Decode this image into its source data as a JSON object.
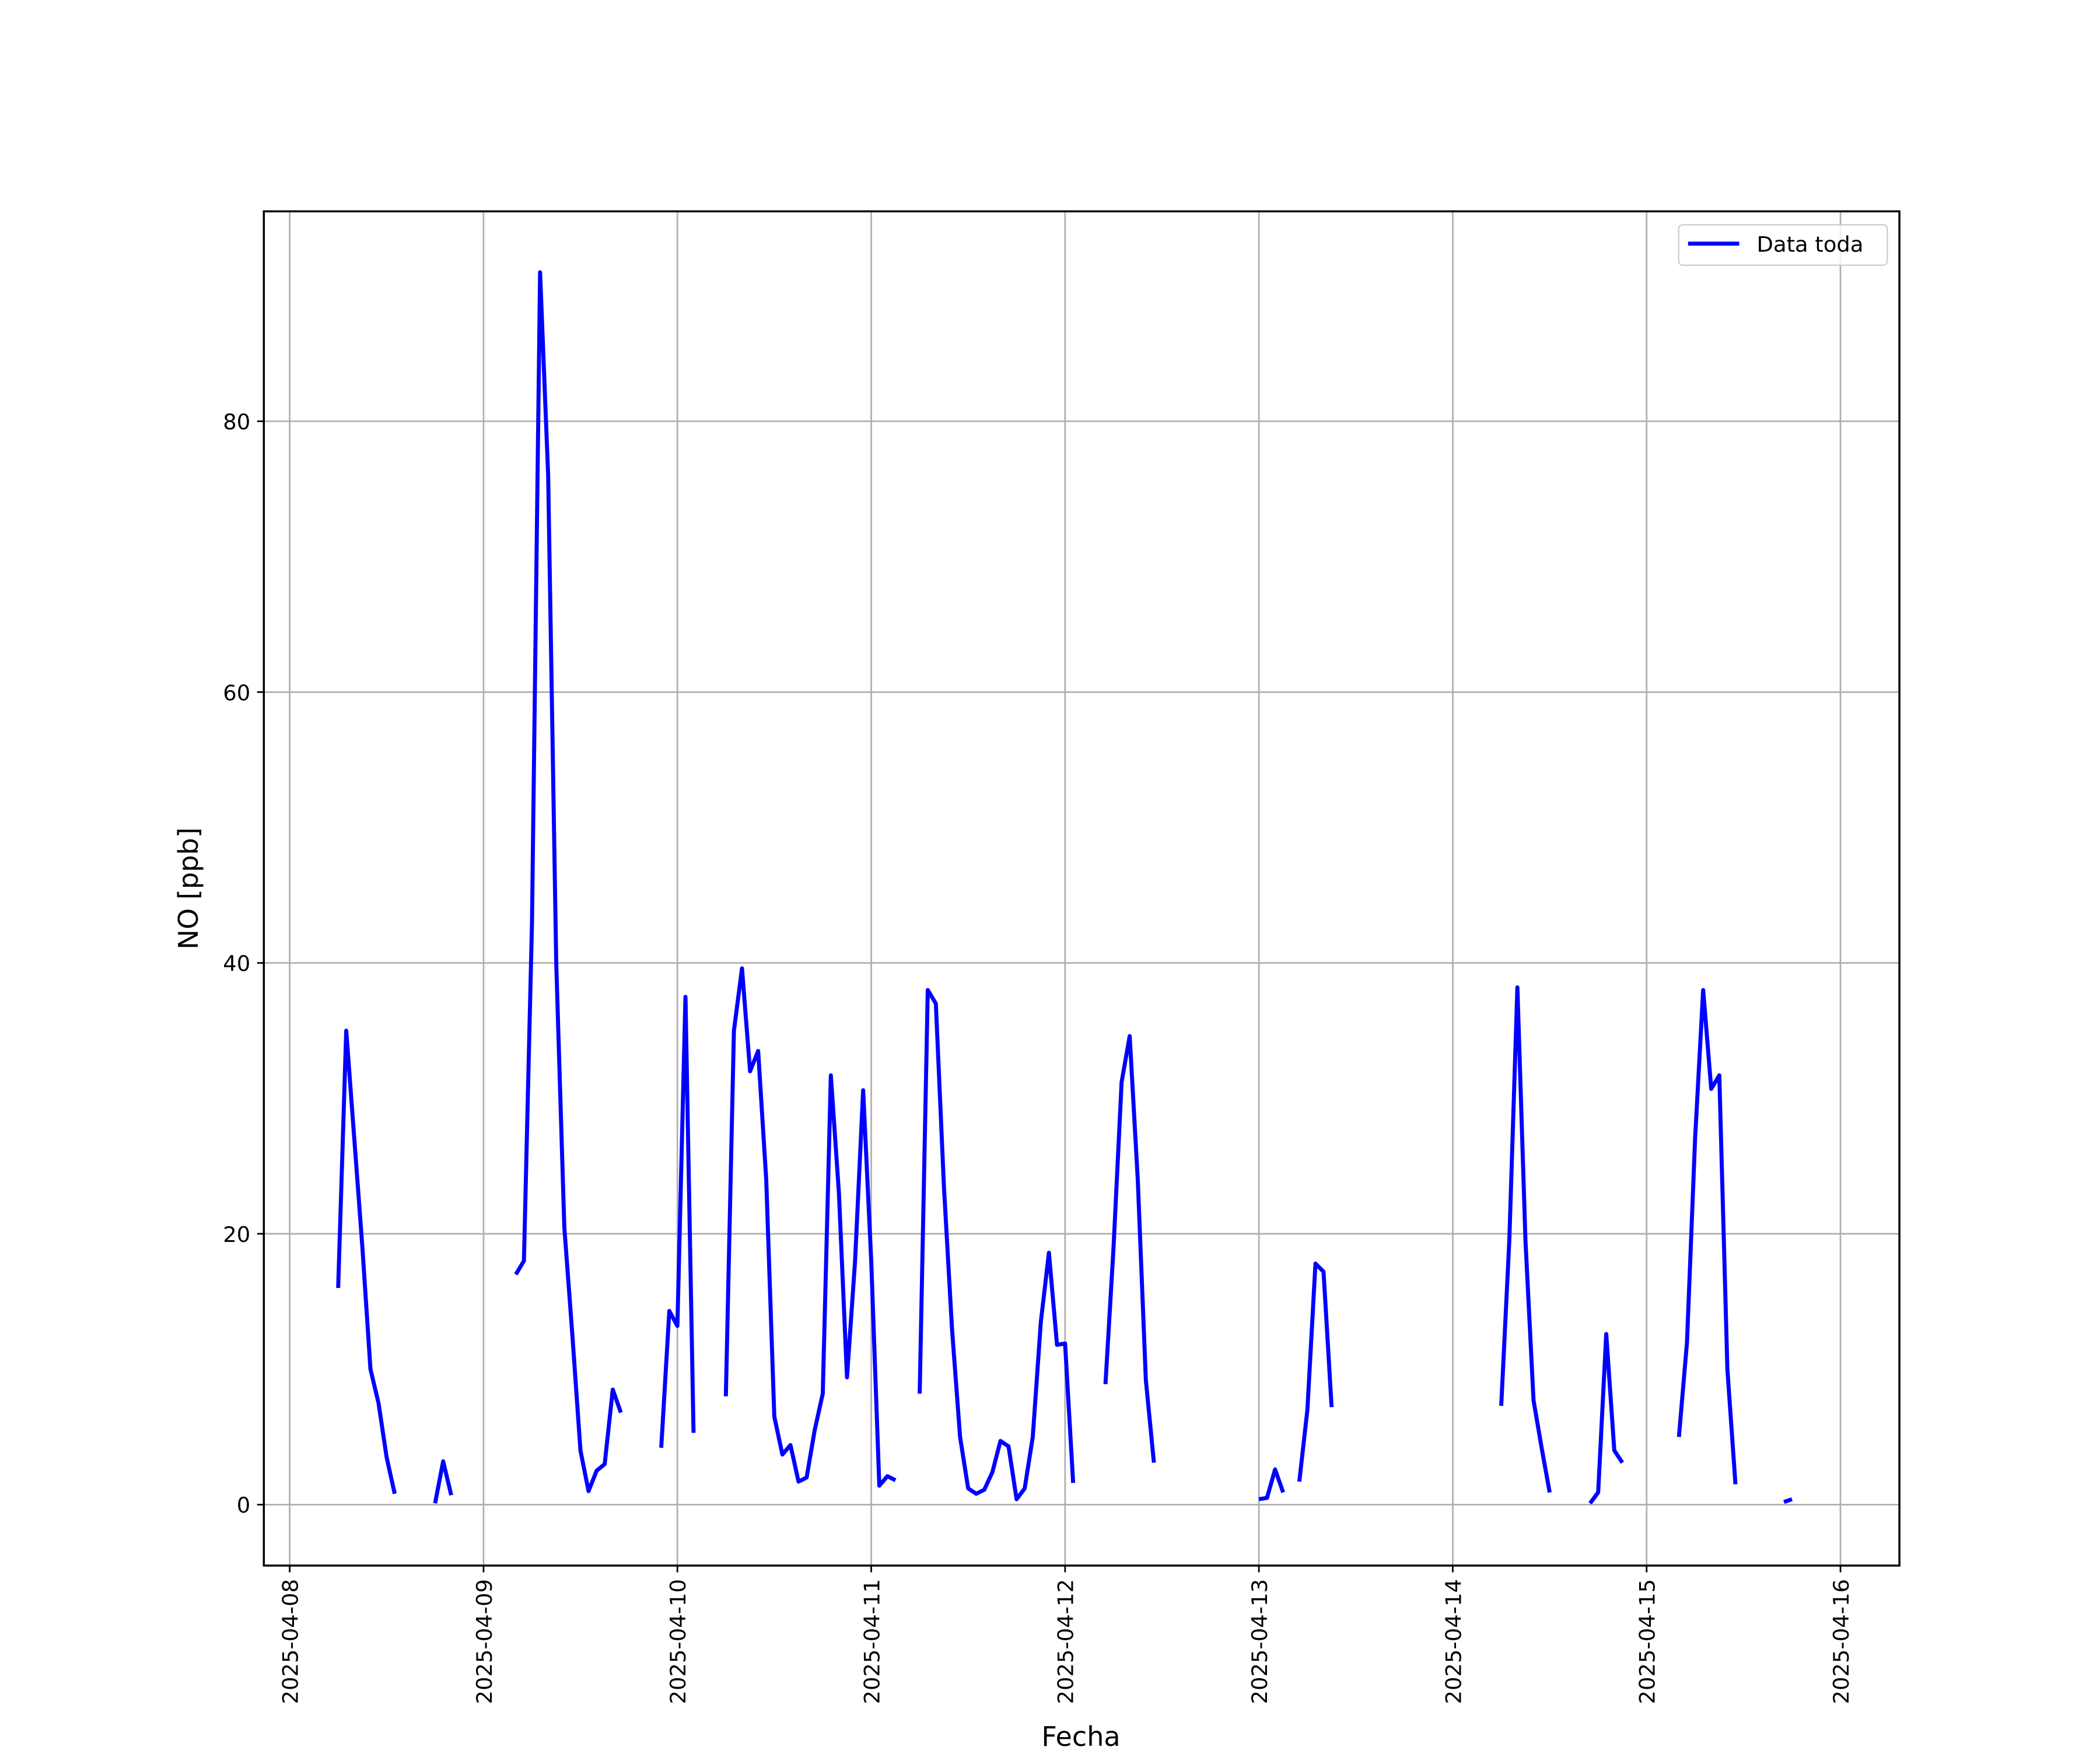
{
  "chart_data": {
    "type": "line",
    "xlabel": "Fecha",
    "ylabel": "NO [ppb]",
    "x": [
      6,
      7,
      8,
      9,
      10,
      11,
      12,
      13,
      14,
      18,
      19,
      20,
      21,
      28,
      29,
      30,
      31,
      32,
      33,
      34,
      35,
      36,
      37,
      38,
      39,
      40,
      41,
      42,
      46,
      47,
      48,
      49,
      50,
      51,
      54,
      55,
      56,
      57,
      58,
      59,
      60,
      61,
      62,
      63,
      64,
      65,
      66,
      67,
      68,
      69,
      70,
      71,
      72,
      73,
      74,
      75,
      76,
      78,
      79,
      80,
      81,
      82,
      83,
      84,
      85,
      86,
      87,
      88,
      89,
      90,
      91,
      92,
      93,
      94,
      95,
      96,
      97,
      98,
      101,
      102,
      103,
      104,
      105,
      106,
      107,
      108,
      120,
      121,
      122,
      123,
      124,
      125,
      126,
      127,
      128,
      129,
      130,
      150,
      151,
      152,
      153,
      154,
      155,
      156,
      157,
      161,
      162,
      163,
      164,
      165,
      166,
      172,
      173,
      174,
      175,
      176,
      177,
      178,
      179,
      180,
      185,
      186
    ],
    "series": [
      {
        "name": "Data toda",
        "color": "#0000ff",
        "values": [
          16,
          35,
          27,
          19,
          10,
          7.5,
          3.5,
          0.8,
          null,
          0.1,
          3.2,
          0.7,
          null,
          17,
          18,
          43,
          91,
          76,
          40,
          20.5,
          12.5,
          4,
          1,
          2.5,
          3,
          8.5,
          6.8,
          null,
          4.2,
          14.3,
          13.2,
          37.5,
          5.3,
          null,
          8,
          35,
          39.6,
          32,
          33.5,
          24,
          6.5,
          3.7,
          4.4,
          1.7,
          2,
          5.5,
          8.2,
          31.7,
          23,
          9.4,
          18,
          30.6,
          18,
          1.4,
          2.1,
          1.8,
          null,
          8.2,
          38,
          37,
          23.5,
          13,
          5,
          1.2,
          0.8,
          1.1,
          2.4,
          4.7,
          4.3,
          0.4,
          1.2,
          5,
          13.5,
          18.6,
          11.8,
          11.9,
          1.6,
          null,
          8.9,
          19,
          31.2,
          34.6,
          24,
          9.2,
          3.1,
          null,
          0.4,
          0.5,
          2.6,
          0.9,
          null,
          1.7,
          7,
          17.8,
          17.2,
          7.2,
          null,
          7.3,
          19.5,
          38.2,
          19.5,
          7.7,
          4.2,
          0.9,
          null,
          0.1,
          0.9,
          12.6,
          4,
          3.1,
          null,
          5,
          12,
          27,
          38,
          30.7,
          31.7,
          10,
          1.5,
          null,
          0.2,
          0.4
        ]
      }
    ],
    "xlim": [
      -3.2,
      199.3
    ],
    "xticks": [
      {
        "value": 0,
        "label": "2025-04-08"
      },
      {
        "value": 24,
        "label": "2025-04-09"
      },
      {
        "value": 48,
        "label": "2025-04-10"
      },
      {
        "value": 72,
        "label": "2025-04-11"
      },
      {
        "value": 96,
        "label": "2025-04-12"
      },
      {
        "value": 120,
        "label": "2025-04-13"
      },
      {
        "value": 144,
        "label": "2025-04-14"
      },
      {
        "value": 168,
        "label": "2025-04-15"
      },
      {
        "value": 192,
        "label": "2025-04-16"
      }
    ],
    "ylim": [
      -4.5,
      95.5
    ],
    "yticks": [
      0,
      20,
      40,
      60,
      80
    ],
    "grid": true,
    "legend": "upper right"
  }
}
